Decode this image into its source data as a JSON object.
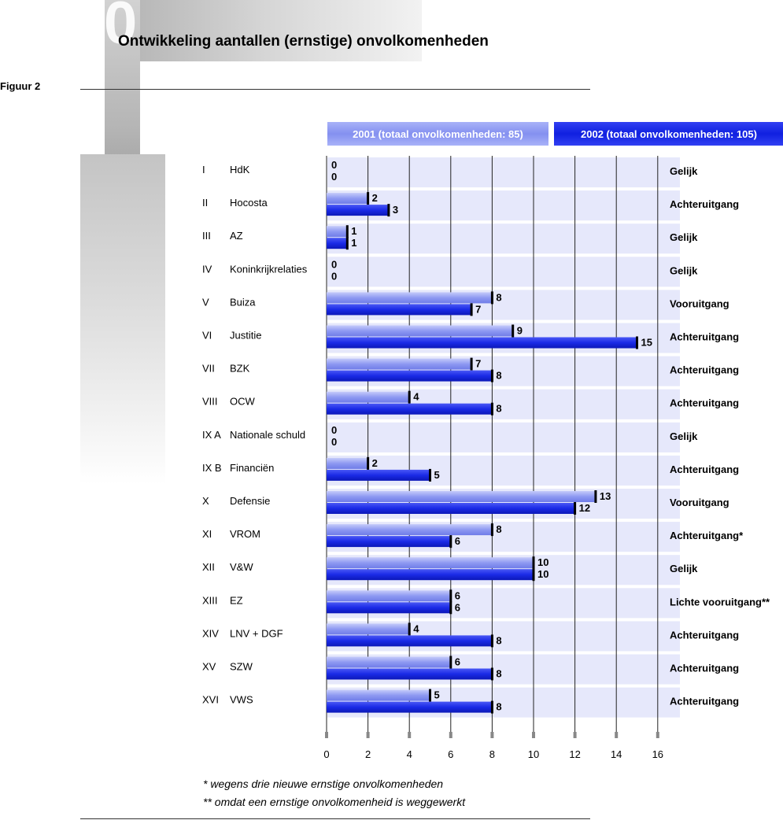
{
  "header": {
    "title": "Ontwikkeling aantallen (ernstige) onvolkomenheden",
    "figure_label": "Figuur 2",
    "deco_digit": "0"
  },
  "legend": {
    "label_2001": "2001 (totaal onvolkomenheden: 85)",
    "label_2002": "2002 (totaal onvolkomenheden: 105)"
  },
  "colors": {
    "bar_2001": "#8e99f2",
    "bar_2002": "#1a2ae6",
    "band": "#e6e8fb"
  },
  "chart_data": {
    "type": "bar",
    "orientation": "horizontal",
    "xlim": [
      0,
      16
    ],
    "xticks": [
      "0",
      "2",
      "4",
      "6",
      "8",
      "10",
      "12",
      "14",
      "16"
    ],
    "series": [
      {
        "name": "2001 (totaal onvolkomenheden: 85)",
        "values": [
          0,
          2,
          1,
          0,
          8,
          9,
          7,
          4,
          0,
          2,
          13,
          8,
          10,
          6,
          4,
          6,
          5
        ]
      },
      {
        "name": "2002 (totaal onvolkomenheden: 105)",
        "values": [
          0,
          3,
          1,
          0,
          7,
          15,
          8,
          8,
          0,
          5,
          12,
          6,
          10,
          6,
          8,
          8,
          8
        ]
      }
    ],
    "rows": [
      {
        "num": "I",
        "name": "HdK",
        "status": "Gelijk"
      },
      {
        "num": "II",
        "name": "Hocosta",
        "status": "Achteruitgang"
      },
      {
        "num": "III",
        "name": "AZ",
        "status": "Gelijk"
      },
      {
        "num": "IV",
        "name": "Koninkrijkrelaties",
        "status": "Gelijk"
      },
      {
        "num": "V",
        "name": "Buiza",
        "status": "Vooruitgang"
      },
      {
        "num": "VI",
        "name": "Justitie",
        "status": "Achteruitgang"
      },
      {
        "num": "VII",
        "name": "BZK",
        "status": "Achteruitgang"
      },
      {
        "num": "VIII",
        "name": "OCW",
        "status": "Achteruitgang"
      },
      {
        "num": "IX A",
        "name": "Nationale schuld",
        "status": "Gelijk"
      },
      {
        "num": "IX B",
        "name": "Financiën",
        "status": "Achteruitgang"
      },
      {
        "num": "X",
        "name": "Defensie",
        "status": "Vooruitgang"
      },
      {
        "num": "XI",
        "name": "VROM",
        "status": "Achteruitgang*"
      },
      {
        "num": "XII",
        "name": "V&W",
        "status": "Gelijk"
      },
      {
        "num": "XIII",
        "name": "EZ",
        "status": "Lichte vooruitgang**"
      },
      {
        "num": "XIV",
        "name": "LNV + DGF",
        "status": "Achteruitgang"
      },
      {
        "num": "XV",
        "name": "SZW",
        "status": "Achteruitgang"
      },
      {
        "num": "XVI",
        "name": "VWS",
        "status": "Achteruitgang"
      }
    ]
  },
  "footnotes": {
    "note1": "*   wegens drie nieuwe ernstige onvolkomenheden",
    "note2": "** omdat een ernstige onvolkomenheid is weggewerkt"
  }
}
